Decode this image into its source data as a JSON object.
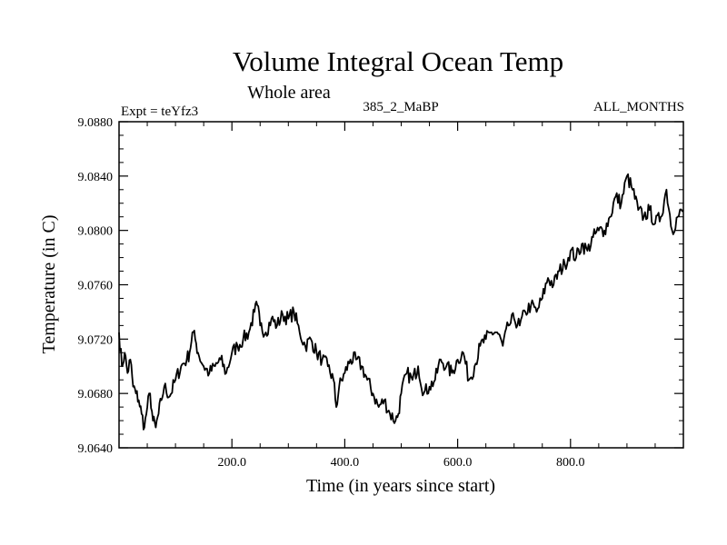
{
  "chart_data": {
    "type": "line",
    "title": "Volume Integral Ocean Temp",
    "subtitle": "Whole area",
    "experiment_label": "Expt = teYfz3",
    "run_label": "385_2_MaBP",
    "period_label": "ALL_MONTHS",
    "xlabel": "Time (in years since start)",
    "ylabel": "Temperature (in C)",
    "xlim": [
      0,
      1000
    ],
    "ylim": [
      9.064,
      9.088
    ],
    "x_ticks": [
      200,
      400,
      600,
      800
    ],
    "x_tick_labels": [
      "200.0",
      "400.0",
      "600.0",
      "800.0"
    ],
    "y_ticks": [
      9.064,
      9.068,
      9.072,
      9.076,
      9.08,
      9.084,
      9.088
    ],
    "y_tick_labels": [
      "9.0640",
      "9.0680",
      "9.0720",
      "9.0760",
      "9.0800",
      "9.0840",
      "9.0880"
    ],
    "grid": false,
    "series": [
      {
        "name": "Volume integral ocean temperature",
        "color": "#000000",
        "x": [
          0,
          5,
          10,
          15,
          20,
          25,
          30,
          35,
          40,
          45,
          50,
          55,
          60,
          65,
          70,
          75,
          80,
          90,
          100,
          110,
          120,
          125,
          130,
          135,
          140,
          150,
          160,
          170,
          180,
          190,
          200,
          210,
          220,
          230,
          240,
          245,
          250,
          260,
          270,
          280,
          290,
          300,
          310,
          320,
          330,
          340,
          350,
          360,
          370,
          380,
          385,
          390,
          400,
          410,
          420,
          430,
          440,
          450,
          460,
          470,
          480,
          490,
          495,
          500,
          510,
          520,
          530,
          540,
          550,
          560,
          570,
          580,
          590,
          600,
          610,
          620,
          630,
          640,
          650,
          660,
          670,
          680,
          690,
          700,
          710,
          720,
          730,
          740,
          750,
          760,
          770,
          780,
          790,
          800,
          810,
          820,
          830,
          840,
          850,
          860,
          870,
          880,
          890,
          900,
          910,
          920,
          930,
          940,
          950,
          960,
          970,
          980,
          990,
          1000
        ],
        "values": [
          9.0725,
          9.07,
          9.071,
          9.0695,
          9.0705,
          9.0685,
          9.068,
          9.0675,
          9.0665,
          9.0655,
          9.067,
          9.068,
          9.066,
          9.0655,
          9.0665,
          9.0675,
          9.0685,
          9.0678,
          9.069,
          9.07,
          9.0705,
          9.071,
          9.0725,
          9.072,
          9.071,
          9.07,
          9.0695,
          9.07,
          9.0705,
          9.0695,
          9.071,
          9.0715,
          9.072,
          9.0725,
          9.074,
          9.0745,
          9.073,
          9.0725,
          9.0735,
          9.073,
          9.0738,
          9.0735,
          9.074,
          9.0725,
          9.0715,
          9.072,
          9.071,
          9.0705,
          9.07,
          9.069,
          9.067,
          9.0685,
          9.0695,
          9.0705,
          9.0705,
          9.07,
          9.069,
          9.068,
          9.067,
          9.0675,
          9.0665,
          9.066,
          9.0665,
          9.068,
          9.0695,
          9.069,
          9.07,
          9.068,
          9.0685,
          9.069,
          9.0705,
          9.07,
          9.0695,
          9.0705,
          9.071,
          9.069,
          9.07,
          9.0715,
          9.072,
          9.0725,
          9.0725,
          9.0715,
          9.073,
          9.0735,
          9.073,
          9.074,
          9.0745,
          9.074,
          9.075,
          9.0765,
          9.076,
          9.077,
          9.0775,
          9.0785,
          9.078,
          9.079,
          9.0785,
          9.0795,
          9.08,
          9.08,
          9.081,
          9.0825,
          9.082,
          9.084,
          9.083,
          9.0815,
          9.081,
          9.0815,
          9.0805,
          9.081,
          9.083,
          9.08,
          9.081,
          9.0815
        ]
      }
    ]
  }
}
